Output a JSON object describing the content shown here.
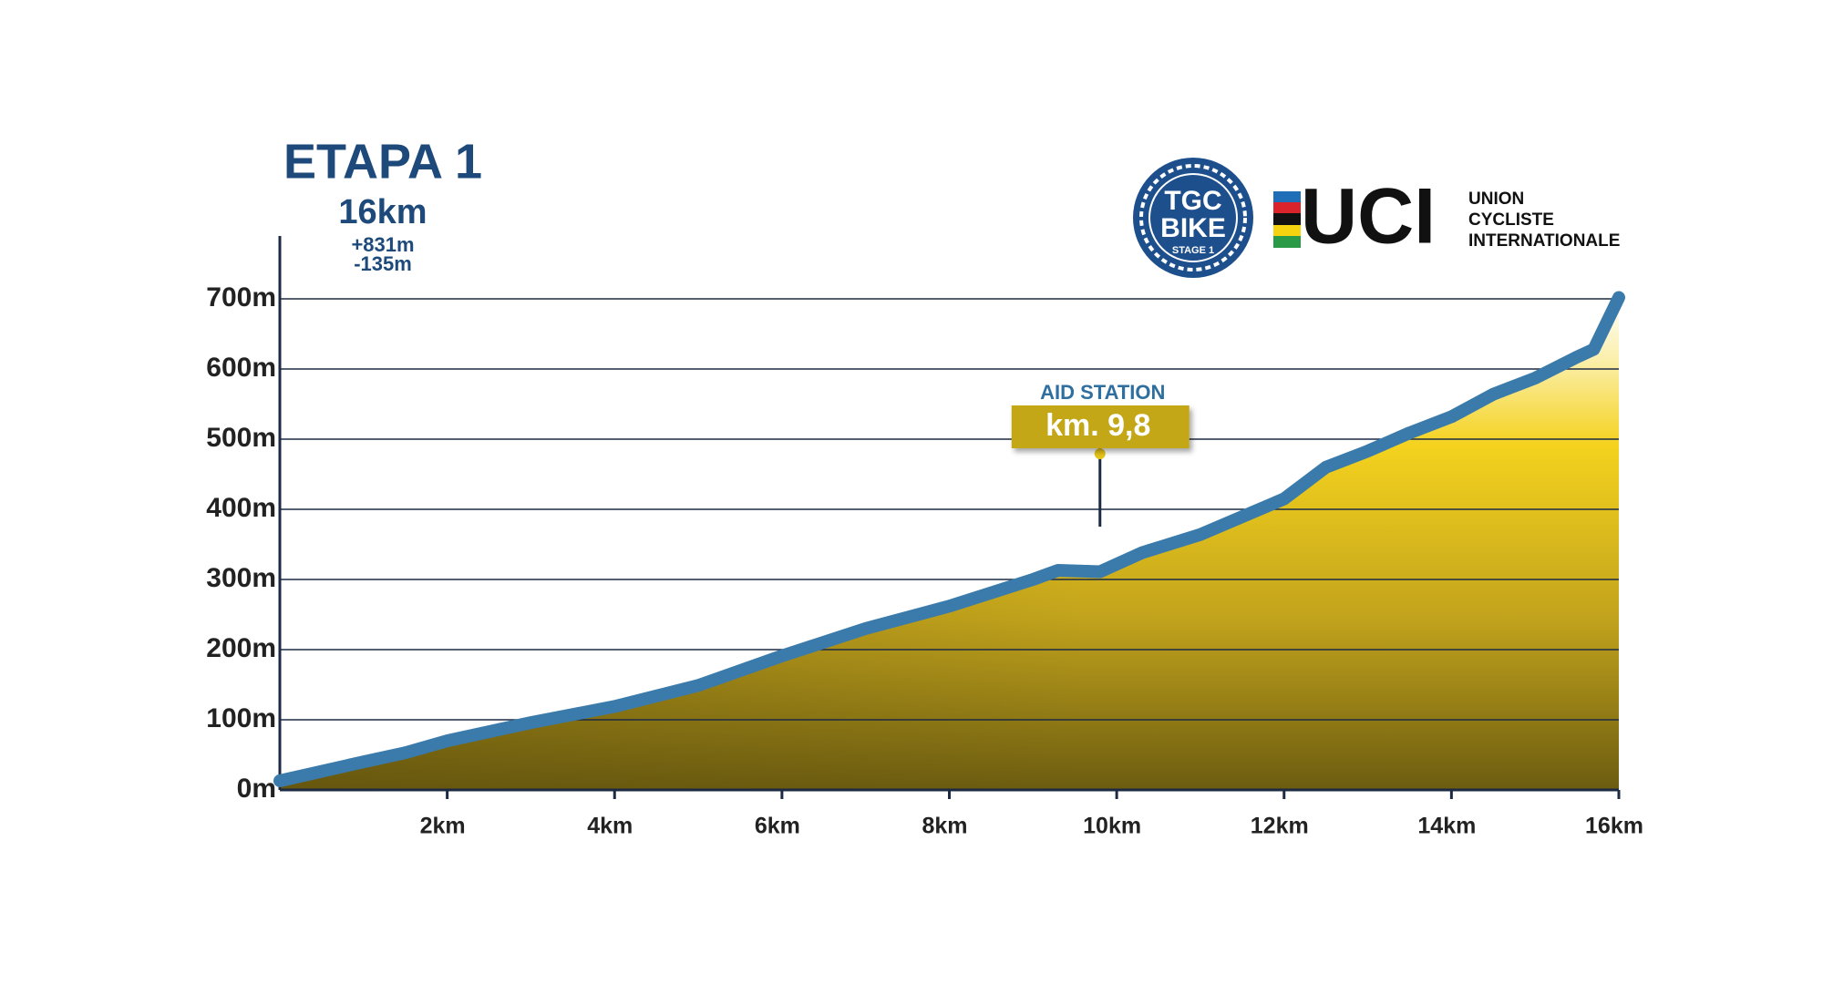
{
  "chart_data": {
    "type": "area",
    "title": "ETAPA 1",
    "subtitle": "16km",
    "gain": "+831m",
    "loss": "-135m",
    "x": [
      0,
      1,
      1.5,
      2,
      3,
      4,
      5,
      6,
      7,
      8,
      9,
      9.3,
      9.8,
      10.3,
      11,
      12,
      12.5,
      13,
      13.5,
      14,
      14.5,
      15,
      15.5,
      15.7,
      16
    ],
    "series": [
      {
        "color": "#3a7bab",
        "values": [
          13,
          40,
          53,
          70,
          96,
          119,
          149,
          191,
          230,
          262,
          300,
          313,
          311,
          338,
          364,
          415,
          460,
          483,
          509,
          532,
          564,
          587,
          617,
          628,
          702
        ]
      }
    ],
    "xlim": [
      0,
      16
    ],
    "xticks": [
      {
        "value": 2,
        "label": "2km"
      },
      {
        "value": 4,
        "label": "4km"
      },
      {
        "value": 6,
        "label": "6km"
      },
      {
        "value": 8,
        "label": "8km"
      },
      {
        "value": 10,
        "label": "10km"
      },
      {
        "value": 12,
        "label": "12km"
      },
      {
        "value": 14,
        "label": "14km"
      },
      {
        "value": 16,
        "label": "16km"
      }
    ],
    "ylim": [
      0,
      800
    ],
    "yticks": [
      {
        "value": 0,
        "label": "0m"
      },
      {
        "value": 100,
        "label": "100m"
      },
      {
        "value": 200,
        "label": "200m"
      },
      {
        "value": 300,
        "label": "300m"
      },
      {
        "value": 400,
        "label": "400m"
      },
      {
        "value": 500,
        "label": "500m"
      },
      {
        "value": 600,
        "label": "600m"
      },
      {
        "value": 700,
        "label": "700m"
      }
    ],
    "grid": true,
    "annotation": {
      "x": 9.8,
      "title": "AID STATION",
      "label": "km. 9,8"
    }
  },
  "logos": {
    "tgc": [
      "TGC",
      "BIKE",
      "STAGE 1"
    ],
    "uci": "UCI",
    "uci_name": [
      "UNION",
      "CYCLISTE",
      "INTERNATIONALE"
    ]
  }
}
